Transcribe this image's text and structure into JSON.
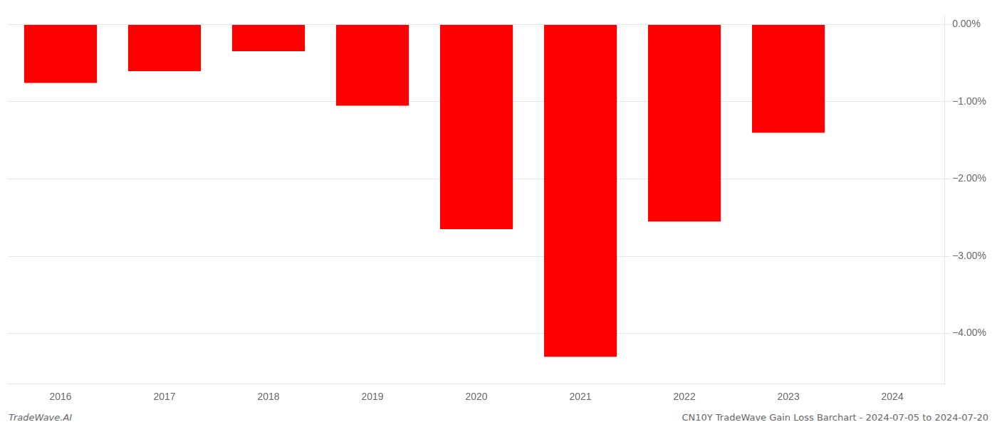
{
  "chart_data": {
    "type": "bar",
    "categories": [
      "2016",
      "2017",
      "2018",
      "2019",
      "2020",
      "2021",
      "2022",
      "2023",
      "2024"
    ],
    "values": [
      -0.755,
      -0.605,
      -0.345,
      -1.05,
      -2.65,
      -4.3,
      -2.55,
      -1.4,
      null
    ],
    "color": "#ff0000",
    "ylim": [
      -4.65,
      0.12
    ],
    "yticks": [
      {
        "value": 0.0,
        "label": "0.00%"
      },
      {
        "value": -1.0,
        "label": "−1.00%"
      },
      {
        "value": -2.0,
        "label": "−2.00%"
      },
      {
        "value": -3.0,
        "label": "−3.00%"
      },
      {
        "value": -4.0,
        "label": "−4.00%"
      }
    ],
    "grid": true,
    "annotations": [
      "TradeWave.AI",
      "CN10Y TradeWave Gain Loss Barchart - 2024-07-05 to 2024-07-20"
    ]
  }
}
